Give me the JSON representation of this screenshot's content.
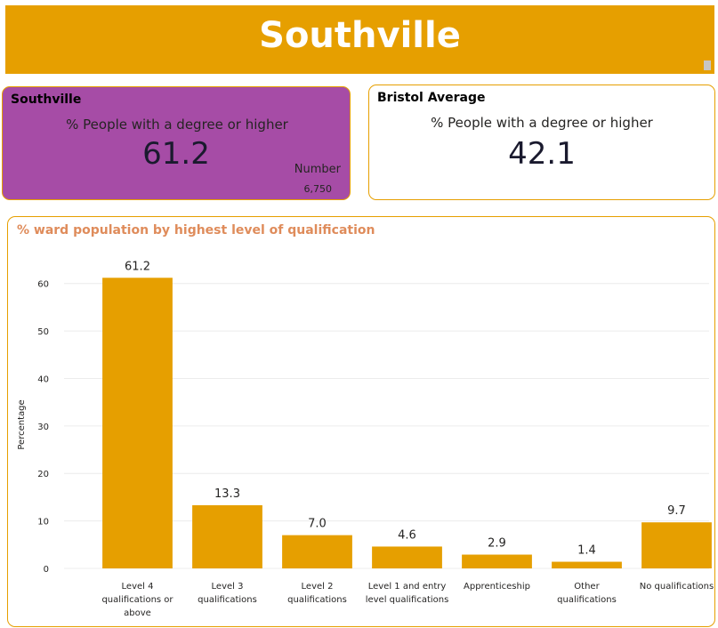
{
  "header": {
    "title": "Southville"
  },
  "ward_card": {
    "title": "Southville",
    "subtitle": "% People with a degree or higher",
    "value": "61.2",
    "number_label": "Number",
    "number_value": "6,750",
    "background": "#a64ca6"
  },
  "average_card": {
    "title": "Bristol Average",
    "subtitle": "% People with a degree or higher",
    "value": "42.1"
  },
  "colors": {
    "accent": "#e69f00",
    "chart_title": "#df8c5b",
    "ward_card": "#a64ca6"
  },
  "chart_data": {
    "type": "bar",
    "title": "% ward population by highest level of qualification",
    "xlabel": "",
    "ylabel": "Percentage",
    "ylim": [
      0,
      65
    ],
    "yticks": [
      0,
      10,
      20,
      30,
      40,
      50,
      60
    ],
    "grid": true,
    "bar_color": "#e69f00",
    "categories": [
      [
        "Level 4",
        "qualifications or",
        "above"
      ],
      [
        "Level 3",
        "qualifications"
      ],
      [
        "Level 2",
        "qualifications"
      ],
      [
        "Level 1 and entry",
        "level qualifications"
      ],
      [
        "Apprenticeship"
      ],
      [
        "Other",
        "qualifications"
      ],
      [
        "No qualifications"
      ]
    ],
    "values": [
      61.2,
      13.3,
      7.0,
      4.6,
      2.9,
      1.4,
      9.7
    ],
    "data_labels": [
      "61.2",
      "13.3",
      "7.0",
      "4.6",
      "2.9",
      "1.4",
      "9.7"
    ]
  }
}
